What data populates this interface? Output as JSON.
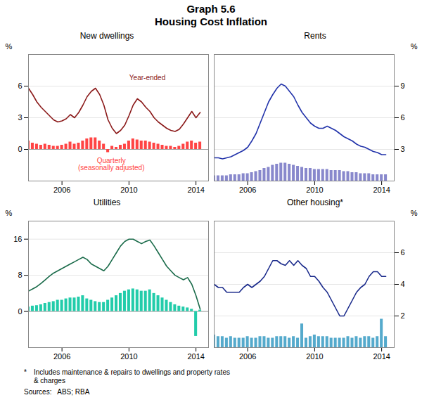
{
  "title": "Graph 5.6",
  "subtitle": "Housing Cost Inflation",
  "annotations": [
    "*",
    "Includes maintenance & repairs to dwellings and property rates\n& charges",
    "Sources:   ABS; RBA"
  ],
  "chart_data": [
    {
      "type": "bar",
      "title": "New dwellings",
      "ylabel": "%",
      "x": [
        2004.0,
        2004.25,
        2004.5,
        2004.75,
        2005.0,
        2005.25,
        2005.5,
        2005.75,
        2006.0,
        2006.25,
        2006.5,
        2006.75,
        2007.0,
        2007.25,
        2007.5,
        2007.75,
        2008.0,
        2008.25,
        2008.5,
        2008.75,
        2009.0,
        2009.25,
        2009.5,
        2009.75,
        2010.0,
        2010.25,
        2010.5,
        2010.75,
        2011.0,
        2011.25,
        2011.5,
        2011.75,
        2012.0,
        2012.25,
        2012.5,
        2012.75,
        2013.0,
        2013.25,
        2013.5,
        2013.75,
        2014.0,
        2014.25
      ],
      "xlim": [
        2004.0,
        2014.75
      ],
      "xticks": [
        2006,
        2010,
        2014
      ],
      "ylim": [
        -3,
        9
      ],
      "yticks": [
        0,
        3,
        6
      ],
      "grid": true,
      "series": [
        {
          "type": "bar",
          "color": "#FF4444",
          "values": [
            0.8,
            0.6,
            0.5,
            0.4,
            0.5,
            0.4,
            0.3,
            0.3,
            0.4,
            0.5,
            0.7,
            0.5,
            0.6,
            0.8,
            1.0,
            1.1,
            1.1,
            0.8,
            0.5,
            -0.3,
            0.3,
            0.2,
            0.4,
            0.5,
            0.8,
            1.0,
            0.9,
            0.8,
            0.8,
            0.7,
            0.6,
            0.5,
            0.4,
            0.3,
            0.3,
            0.2,
            0.3,
            0.5,
            0.7,
            0.8,
            0.6,
            0.7
          ]
        },
        {
          "type": "line",
          "color": "#8B1A1A",
          "values": [
            5.8,
            5.2,
            4.5,
            4.0,
            3.6,
            3.2,
            2.8,
            2.6,
            2.7,
            2.9,
            3.3,
            3.0,
            3.5,
            4.2,
            5.0,
            5.5,
            5.8,
            5.2,
            4.2,
            2.8,
            2.0,
            1.5,
            1.8,
            2.3,
            3.2,
            4.2,
            4.8,
            4.5,
            4.0,
            3.6,
            3.0,
            2.6,
            2.3,
            2.0,
            1.8,
            1.7,
            1.9,
            2.4,
            3.0,
            3.6,
            3.0,
            3.5
          ]
        }
      ],
      "annotations": [
        {
          "text": "Year-ended",
          "color": "#8B1A1A"
        },
        {
          "text": "Quarterly\n(seasonally adjusted)",
          "color": "#FF4444"
        }
      ]
    },
    {
      "type": "bar",
      "title": "Rents",
      "ylabel": "%",
      "x": [
        2004.0,
        2004.25,
        2004.5,
        2004.75,
        2005.0,
        2005.25,
        2005.5,
        2005.75,
        2006.0,
        2006.25,
        2006.5,
        2006.75,
        2007.0,
        2007.25,
        2007.5,
        2007.75,
        2008.0,
        2008.25,
        2008.5,
        2008.75,
        2009.0,
        2009.25,
        2009.5,
        2009.75,
        2010.0,
        2010.25,
        2010.5,
        2010.75,
        2011.0,
        2011.25,
        2011.5,
        2011.75,
        2012.0,
        2012.25,
        2012.5,
        2012.75,
        2013.0,
        2013.25,
        2013.5,
        2013.75,
        2014.0,
        2014.25
      ],
      "xlim": [
        2004.0,
        2014.75
      ],
      "xticks": [
        2006,
        2010,
        2014
      ],
      "ylim": [
        0,
        12
      ],
      "yticks": [
        3,
        6,
        9
      ],
      "grid": true,
      "series": [
        {
          "type": "bar",
          "color": "#8888CC",
          "values": [
            0.5,
            0.5,
            0.5,
            0.5,
            0.6,
            0.6,
            0.6,
            0.7,
            0.7,
            0.8,
            0.9,
            1.0,
            1.2,
            1.3,
            1.5,
            1.6,
            1.7,
            1.7,
            1.6,
            1.5,
            1.4,
            1.3,
            1.2,
            1.2,
            1.1,
            1.1,
            1.1,
            1.1,
            1.0,
            1.0,
            1.0,
            0.9,
            0.9,
            0.8,
            0.8,
            0.7,
            0.7,
            0.7,
            0.6,
            0.6,
            0.6,
            0.6
          ]
        },
        {
          "type": "line",
          "color": "#2233AA",
          "values": [
            2.2,
            2.2,
            2.1,
            2.2,
            2.3,
            2.5,
            2.7,
            2.9,
            3.2,
            3.8,
            4.5,
            5.5,
            6.5,
            7.5,
            8.2,
            8.8,
            9.2,
            9.0,
            8.5,
            8.0,
            7.2,
            6.5,
            6.0,
            5.5,
            5.2,
            5.0,
            5.0,
            5.2,
            5.0,
            4.8,
            4.5,
            4.2,
            4.0,
            3.8,
            3.5,
            3.3,
            3.2,
            3.0,
            2.8,
            2.7,
            2.5,
            2.5
          ]
        }
      ]
    },
    {
      "type": "bar",
      "title": "Utilities",
      "ylabel": "%",
      "x": [
        2004.0,
        2004.25,
        2004.5,
        2004.75,
        2005.0,
        2005.25,
        2005.5,
        2005.75,
        2006.0,
        2006.25,
        2006.5,
        2006.75,
        2007.0,
        2007.25,
        2007.5,
        2007.75,
        2008.0,
        2008.25,
        2008.5,
        2008.75,
        2009.0,
        2009.25,
        2009.5,
        2009.75,
        2010.0,
        2010.25,
        2010.5,
        2010.75,
        2011.0,
        2011.25,
        2011.5,
        2011.75,
        2012.0,
        2012.25,
        2012.5,
        2012.75,
        2013.0,
        2013.25,
        2013.5,
        2013.75,
        2014.0,
        2014.25
      ],
      "xlim": [
        2004.0,
        2014.75
      ],
      "xticks": [
        2006,
        2010,
        2014
      ],
      "ylim": [
        -8,
        20
      ],
      "yticks": [
        0,
        8,
        16
      ],
      "grid": true,
      "series": [
        {
          "type": "bar",
          "color": "#22CCAA",
          "values": [
            1.0,
            1.2,
            1.3,
            1.5,
            1.8,
            2.0,
            2.2,
            2.5,
            2.5,
            2.8,
            3.0,
            3.0,
            3.2,
            3.5,
            2.8,
            2.5,
            2.2,
            2.0,
            2.0,
            2.5,
            3.0,
            3.5,
            4.0,
            4.5,
            4.8,
            5.0,
            4.8,
            4.5,
            4.5,
            4.8,
            4.0,
            3.5,
            3.0,
            2.5,
            2.0,
            1.5,
            1.2,
            1.0,
            0.8,
            0.5,
            -5.5,
            0.3
          ]
        },
        {
          "type": "line",
          "color": "#1A6B4A",
          "values": [
            4.5,
            5.0,
            5.5,
            6.2,
            7.0,
            7.8,
            8.5,
            9.0,
            9.5,
            10.0,
            10.5,
            11.0,
            11.5,
            12.0,
            11.5,
            10.5,
            10.0,
            9.5,
            9.0,
            10.0,
            11.5,
            13.0,
            14.5,
            15.5,
            16.0,
            16.0,
            15.5,
            15.0,
            15.5,
            15.8,
            14.5,
            13.0,
            11.5,
            10.0,
            9.0,
            8.0,
            7.5,
            7.0,
            7.5,
            6.0,
            3.5,
            0.5
          ]
        }
      ]
    },
    {
      "type": "bar",
      "title": "Other housing*",
      "ylabel": "%",
      "x": [
        2004.0,
        2004.25,
        2004.5,
        2004.75,
        2005.0,
        2005.25,
        2005.5,
        2005.75,
        2006.0,
        2006.25,
        2006.5,
        2006.75,
        2007.0,
        2007.25,
        2007.5,
        2007.75,
        2008.0,
        2008.25,
        2008.5,
        2008.75,
        2009.0,
        2009.25,
        2009.5,
        2009.75,
        2010.0,
        2010.25,
        2010.5,
        2010.75,
        2011.0,
        2011.25,
        2011.5,
        2011.75,
        2012.0,
        2012.25,
        2012.5,
        2012.75,
        2013.0,
        2013.25,
        2013.5,
        2013.75,
        2014.0,
        2014.25
      ],
      "xlim": [
        2004.0,
        2014.75
      ],
      "xticks": [
        2006,
        2010,
        2014
      ],
      "ylim": [
        0,
        8
      ],
      "yticks": [
        2,
        4,
        6
      ],
      "grid": true,
      "series": [
        {
          "type": "bar",
          "color": "#55AACC",
          "values": [
            0.8,
            0.7,
            0.7,
            0.6,
            0.7,
            0.6,
            0.6,
            0.6,
            0.7,
            0.6,
            0.6,
            0.7,
            0.7,
            0.6,
            0.6,
            0.7,
            0.7,
            0.7,
            0.6,
            0.7,
            0.6,
            1.5,
            0.6,
            0.7,
            0.8,
            0.7,
            0.7,
            0.7,
            0.6,
            0.6,
            0.6,
            0.6,
            0.7,
            0.6,
            0.7,
            0.6,
            0.7,
            0.7,
            0.6,
            0.7,
            1.8,
            0.7
          ]
        },
        {
          "type": "line",
          "color": "#1A2A8B",
          "values": [
            4.0,
            3.8,
            3.8,
            3.5,
            3.5,
            3.5,
            3.5,
            3.8,
            4.0,
            3.8,
            4.0,
            4.2,
            4.5,
            5.0,
            5.5,
            5.5,
            5.3,
            5.2,
            5.5,
            5.2,
            5.5,
            5.2,
            5.0,
            4.5,
            4.5,
            4.2,
            3.8,
            3.5,
            3.0,
            2.5,
            2.0,
            2.0,
            2.5,
            3.0,
            3.5,
            3.8,
            4.0,
            4.5,
            4.8,
            4.8,
            4.5,
            4.5
          ]
        }
      ]
    }
  ]
}
